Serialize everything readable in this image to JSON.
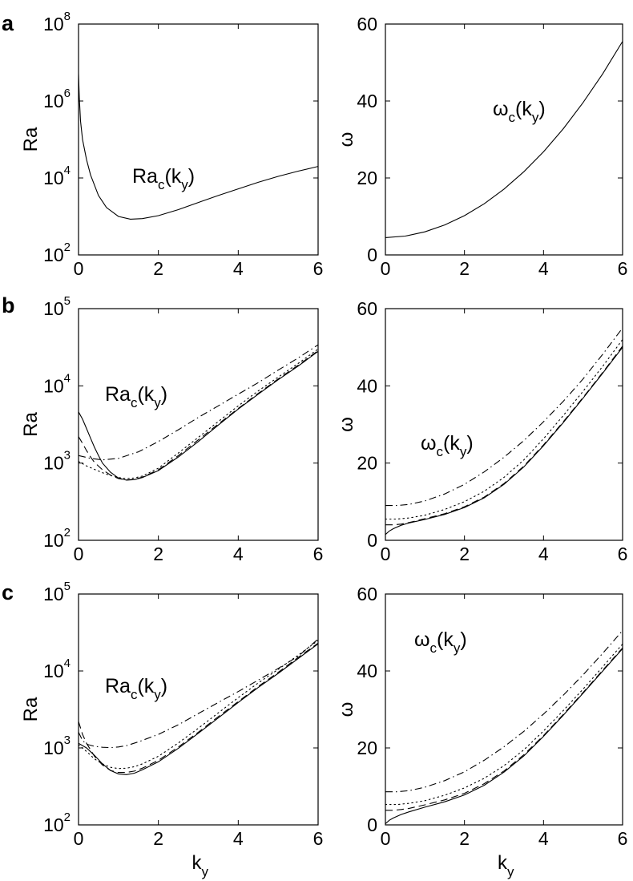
{
  "panels": [
    {
      "letter": "a"
    },
    {
      "letter": "b"
    },
    {
      "letter": "c"
    }
  ],
  "chart_data": [
    {
      "type": "line",
      "panel": "a",
      "column": "left",
      "yscale": "log",
      "ylabel": "Ra",
      "xlabel": "",
      "annotation": {
        "main": "Ra",
        "sub": "c",
        "arg_open": "(k",
        "arg_sub": "y",
        "arg_close": ")"
      },
      "xlim": [
        0,
        6
      ],
      "ylim": [
        100,
        100000000
      ],
      "xticks": [
        0,
        2,
        4,
        6
      ],
      "yticks": [
        {
          "base": "10",
          "exp": "2"
        },
        {
          "base": "10",
          "exp": "4"
        },
        {
          "base": "10",
          "exp": "6"
        },
        {
          "base": "10",
          "exp": "8"
        }
      ],
      "series": [
        {
          "style": "solid",
          "x": [
            0,
            0.02,
            0.05,
            0.1,
            0.2,
            0.3,
            0.5,
            0.7,
            1.0,
            1.3,
            1.6,
            2.0,
            2.5,
            3.0,
            3.5,
            4.0,
            4.5,
            5.0,
            5.5,
            6.0
          ],
          "y": [
            5000000,
            1200000,
            300000,
            100000,
            30000,
            12000,
            3500,
            1700,
            1000,
            850,
            880,
            1050,
            1500,
            2300,
            3500,
            5200,
            7700,
            11000,
            15000,
            20000
          ]
        }
      ]
    },
    {
      "type": "line",
      "panel": "a",
      "column": "right",
      "yscale": "linear",
      "ylabel": "ω",
      "xlabel": "",
      "annotation": {
        "main": "ω",
        "sub": "c",
        "arg_open": "(k",
        "arg_sub": "y",
        "arg_close": ")"
      },
      "xlim": [
        0,
        6
      ],
      "ylim": [
        0,
        60
      ],
      "xticks": [
        0,
        2,
        4,
        6
      ],
      "yticks": [
        0,
        20,
        40,
        60
      ],
      "series": [
        {
          "style": "solid",
          "x": [
            0,
            0.5,
            1,
            1.5,
            2,
            2.5,
            3,
            3.5,
            4,
            4.5,
            5,
            5.5,
            6
          ],
          "y": [
            4.5,
            4.9,
            6.0,
            7.8,
            10.2,
            13.3,
            17.1,
            21.6,
            26.8,
            32.8,
            39.6,
            47.1,
            55.5
          ]
        }
      ]
    },
    {
      "type": "line",
      "panel": "b",
      "column": "left",
      "yscale": "log",
      "ylabel": "Ra",
      "xlabel": "",
      "annotation": {
        "main": "Ra",
        "sub": "c",
        "arg_open": "(k",
        "arg_sub": "y",
        "arg_close": ")"
      },
      "xlim": [
        0,
        6
      ],
      "ylim": [
        100,
        100000
      ],
      "xticks": [
        0,
        2,
        4,
        6
      ],
      "yticks": [
        {
          "base": "10",
          "exp": "2"
        },
        {
          "base": "10",
          "exp": "3"
        },
        {
          "base": "10",
          "exp": "4"
        },
        {
          "base": "10",
          "exp": "5"
        }
      ],
      "series": [
        {
          "style": "solid",
          "x": [
            0,
            0.1,
            0.2,
            0.3,
            0.4,
            0.5,
            0.6,
            0.8,
            1.0,
            1.2,
            1.4,
            1.6,
            2.0,
            2.5,
            3.0,
            3.5,
            4.0,
            4.5,
            5.0,
            5.5,
            6.0
          ],
          "y": [
            4600,
            3700,
            2800,
            2100,
            1600,
            1250,
            1000,
            760,
            640,
            600,
            610,
            650,
            800,
            1200,
            1900,
            3100,
            5000,
            7800,
            12000,
            18000,
            28000
          ]
        },
        {
          "style": "dashed",
          "x": [
            0,
            0.1,
            0.2,
            0.3,
            0.4,
            0.6,
            0.8,
            1.0,
            1.2,
            1.4,
            1.6,
            2.0,
            2.5,
            3.0,
            3.5,
            4.0,
            4.5,
            5.0,
            5.5,
            6.0
          ],
          "y": [
            2200,
            1800,
            1450,
            1200,
            1020,
            820,
            700,
            630,
            605,
            615,
            660,
            820,
            1250,
            2000,
            3200,
            5100,
            8000,
            12300,
            18500,
            28500
          ]
        },
        {
          "style": "dotted",
          "x": [
            0,
            0.2,
            0.4,
            0.6,
            0.8,
            1.0,
            1.2,
            1.4,
            1.6,
            2.0,
            2.5,
            3.0,
            3.5,
            4.0,
            4.5,
            5.0,
            5.5,
            6.0
          ],
          "y": [
            1050,
            920,
            830,
            750,
            690,
            650,
            630,
            640,
            680,
            860,
            1350,
            2150,
            3450,
            5500,
            8600,
            13000,
            19500,
            30000
          ]
        },
        {
          "style": "dashdot",
          "x": [
            0,
            0.3,
            0.6,
            1.0,
            1.5,
            2.0,
            2.5,
            3.0,
            3.5,
            4.0,
            4.5,
            5.0,
            5.5,
            6.0
          ],
          "y": [
            1250,
            1150,
            1100,
            1150,
            1400,
            1900,
            2700,
            3900,
            5500,
            7800,
            11000,
            16000,
            23000,
            34000
          ]
        }
      ]
    },
    {
      "type": "line",
      "panel": "b",
      "column": "right",
      "yscale": "linear",
      "ylabel": "ω",
      "xlabel": "",
      "annotation": {
        "main": "ω",
        "sub": "c",
        "arg_open": "(k",
        "arg_sub": "y",
        "arg_close": ")"
      },
      "xlim": [
        0,
        6
      ],
      "ylim": [
        0,
        60
      ],
      "xticks": [
        0,
        2,
        4,
        6
      ],
      "yticks": [
        0,
        20,
        40,
        60
      ],
      "series": [
        {
          "style": "solid",
          "x": [
            0,
            0.1,
            0.2,
            0.4,
            0.6,
            1.0,
            1.5,
            2.0,
            2.5,
            3.0,
            3.5,
            4.0,
            4.5,
            5.0,
            5.5,
            6.0
          ],
          "y": [
            1.5,
            2.4,
            3.0,
            3.9,
            4.5,
            5.4,
            6.7,
            8.5,
            11.0,
            14.5,
            19.0,
            24.5,
            30.5,
            36.8,
            43.3,
            50.0
          ]
        },
        {
          "style": "dashed",
          "x": [
            0,
            0.2,
            0.4,
            0.6,
            1.0,
            1.5,
            2.0,
            2.5,
            3.0,
            3.5,
            4.0,
            4.5,
            5.0,
            5.5,
            6.0
          ],
          "y": [
            4.0,
            4.0,
            4.2,
            4.6,
            5.6,
            6.9,
            8.7,
            11.2,
            14.7,
            19.2,
            24.7,
            30.7,
            37.0,
            43.5,
            50.3
          ]
        },
        {
          "style": "dotted",
          "x": [
            0,
            0.3,
            0.6,
            1.0,
            1.5,
            2.0,
            2.5,
            3.0,
            3.5,
            4.0,
            4.5,
            5.0,
            5.5,
            6.0
          ],
          "y": [
            5.5,
            5.5,
            5.8,
            6.5,
            8.0,
            10.0,
            12.7,
            16.3,
            20.8,
            26.3,
            32.3,
            38.6,
            45.1,
            52.0
          ]
        },
        {
          "style": "dashdot",
          "x": [
            0,
            0.3,
            0.6,
            1.0,
            1.5,
            2.0,
            2.5,
            3.0,
            3.5,
            4.0,
            4.5,
            5.0,
            5.5,
            6.0
          ],
          "y": [
            9.0,
            9.0,
            9.3,
            10.2,
            12.0,
            14.5,
            17.7,
            21.5,
            25.8,
            30.7,
            36.0,
            41.8,
            48.2,
            55.0
          ]
        }
      ]
    },
    {
      "type": "line",
      "panel": "c",
      "column": "left",
      "yscale": "log",
      "ylabel": "Ra",
      "xlabel": "k",
      "xlabel_sub": "y",
      "annotation": {
        "main": "Ra",
        "sub": "c",
        "arg_open": "(k",
        "arg_sub": "y",
        "arg_close": ")"
      },
      "xlim": [
        0,
        6
      ],
      "ylim": [
        100,
        100000
      ],
      "xticks": [
        0,
        2,
        4,
        6
      ],
      "yticks": [
        {
          "base": "10",
          "exp": "2"
        },
        {
          "base": "10",
          "exp": "3"
        },
        {
          "base": "10",
          "exp": "4"
        },
        {
          "base": "10",
          "exp": "5"
        }
      ],
      "series": [
        {
          "style": "solid",
          "x": [
            0,
            0.2,
            0.4,
            0.6,
            0.8,
            1.0,
            1.2,
            1.4,
            1.6,
            2.0,
            2.5,
            3.0,
            3.5,
            4.0,
            4.5,
            5.0,
            5.5,
            6.0
          ],
          "y": [
            1150,
            1000,
            800,
            620,
            510,
            460,
            450,
            470,
            520,
            660,
            990,
            1550,
            2450,
            3900,
            6100,
            9300,
            14500,
            22500
          ]
        },
        {
          "style": "dashed",
          "x": [
            0,
            0.1,
            0.2,
            0.4,
            0.6,
            0.8,
            1.0,
            1.2,
            1.4,
            1.6,
            2.0,
            2.5,
            3.0,
            3.5,
            4.0,
            4.5,
            5.0,
            5.5,
            6.0
          ],
          "y": [
            2200,
            1500,
            1150,
            780,
            600,
            510,
            480,
            480,
            500,
            545,
            690,
            1030,
            1600,
            2550,
            4000,
            6300,
            9600,
            15000,
            23000
          ]
        },
        {
          "style": "dotted",
          "x": [
            0,
            0.2,
            0.4,
            0.6,
            0.8,
            1.0,
            1.2,
            1.4,
            1.6,
            2.0,
            2.5,
            3.0,
            3.5,
            4.0,
            4.5,
            5.0,
            5.5,
            6.0
          ],
          "y": [
            1100,
            900,
            720,
            620,
            560,
            540,
            545,
            570,
            620,
            780,
            1160,
            1800,
            2850,
            4500,
            7000,
            10500,
            16000,
            25000
          ]
        },
        {
          "style": "dashdot",
          "x": [
            0,
            0.1,
            0.2,
            0.4,
            0.6,
            0.8,
            1.0,
            1.2,
            1.5,
            2.0,
            2.5,
            3.0,
            3.5,
            4.0,
            4.5,
            5.0,
            5.5,
            6.0
          ],
          "y": [
            1600,
            1250,
            1120,
            1050,
            1020,
            1010,
            1030,
            1070,
            1200,
            1500,
            2000,
            2800,
            3900,
            5400,
            7600,
            10800,
            15500,
            26000
          ]
        }
      ]
    },
    {
      "type": "line",
      "panel": "c",
      "column": "right",
      "yscale": "linear",
      "ylabel": "ω",
      "xlabel": "k",
      "xlabel_sub": "y",
      "annotation": {
        "main": "ω",
        "sub": "c",
        "arg_open": "(k",
        "arg_sub": "y",
        "arg_close": ")"
      },
      "xlim": [
        0,
        6
      ],
      "ylim": [
        0,
        60
      ],
      "xticks": [
        0,
        2,
        4,
        6
      ],
      "yticks": [
        0,
        20,
        40,
        60
      ],
      "series": [
        {
          "style": "solid",
          "x": [
            0,
            0.1,
            0.2,
            0.4,
            0.6,
            1.0,
            1.5,
            2.0,
            2.5,
            3.0,
            3.5,
            4.0,
            4.5,
            5.0,
            5.5,
            6.0
          ],
          "y": [
            0.3,
            1.2,
            1.8,
            2.7,
            3.4,
            4.6,
            6.0,
            7.8,
            10.3,
            13.7,
            17.9,
            23.0,
            28.5,
            34.2,
            40.0,
            45.8
          ]
        },
        {
          "style": "dashed",
          "x": [
            0,
            0.2,
            0.4,
            0.6,
            1.0,
            1.5,
            2.0,
            2.5,
            3.0,
            3.5,
            4.0,
            4.5,
            5.0,
            5.5,
            6.0
          ],
          "y": [
            3.8,
            3.8,
            4.0,
            4.3,
            5.2,
            6.5,
            8.2,
            10.7,
            14.0,
            18.2,
            23.2,
            28.7,
            34.4,
            40.2,
            46.0
          ]
        },
        {
          "style": "dotted",
          "x": [
            0,
            0.3,
            0.6,
            1.0,
            1.5,
            2.0,
            2.5,
            3.0,
            3.5,
            4.0,
            4.5,
            5.0,
            5.5,
            6.0
          ],
          "y": [
            5.3,
            5.3,
            5.6,
            6.3,
            7.7,
            9.6,
            12.1,
            15.4,
            19.5,
            24.4,
            29.7,
            35.3,
            41.1,
            47.0
          ]
        },
        {
          "style": "dashdot",
          "x": [
            0,
            0.3,
            0.6,
            1.0,
            1.5,
            2.0,
            2.5,
            3.0,
            3.5,
            4.0,
            4.5,
            5.0,
            5.5,
            6.0
          ],
          "y": [
            8.6,
            8.6,
            8.9,
            9.8,
            11.5,
            13.8,
            16.8,
            20.3,
            24.3,
            28.8,
            33.7,
            39.0,
            44.6,
            50.5
          ]
        }
      ]
    }
  ]
}
